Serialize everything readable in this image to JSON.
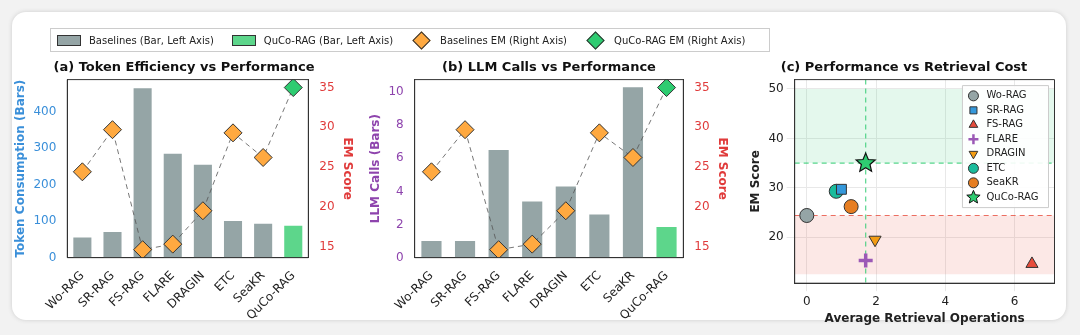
{
  "chart_data": [
    {
      "type": "bar",
      "title": "(a) Token Efficiency vs Performance",
      "ylabel": "Token Consumption (Bars)",
      "y2label": "EM Score",
      "categories": [
        "Wo-RAG",
        "SR-RAG",
        "FS-RAG",
        "FLARE",
        "DRAGIN",
        "ETC",
        "SeaKR",
        "QuCo-RAG"
      ],
      "series": [
        {
          "name": "Baselines (Bar, Left Axis)",
          "color": "#95a5a6",
          "values": [
            55,
            70,
            463,
            284,
            254,
            100,
            93,
            null
          ]
        },
        {
          "name": "QuCo-RAG (Bar, Left Axis)",
          "color": "#5dd68b",
          "values": [
            null,
            null,
            null,
            null,
            null,
            null,
            null,
            87
          ]
        },
        {
          "type": "line",
          "axis": "y2",
          "color": "#555555",
          "marker": "none",
          "line_style": "dashed",
          "values": [
            24.4,
            29.7,
            14.6,
            15.3,
            19.5,
            29.3,
            26.2,
            35.0
          ]
        },
        {
          "name": "Baselines EM (Right Axis)",
          "type": "scatter",
          "axis": "y2",
          "marker": "diamond",
          "color": "#ffa940",
          "values": [
            24.4,
            29.7,
            14.6,
            15.3,
            19.5,
            29.3,
            26.2,
            null
          ]
        },
        {
          "name": "QuCo-RAG EM (Right Axis)",
          "type": "scatter",
          "axis": "y2",
          "marker": "diamond",
          "color": "#2ecc71",
          "values": [
            null,
            null,
            null,
            null,
            null,
            null,
            null,
            35.0
          ]
        }
      ],
      "ylim": [
        0,
        487
      ],
      "yticks": [
        0,
        100,
        200,
        300,
        400
      ],
      "y2lim": [
        13.6,
        36
      ],
      "y2ticks": [
        15,
        20,
        25,
        30,
        35
      ],
      "legend": "top",
      "grid": false
    },
    {
      "type": "bar",
      "title": "(b) LLM Calls vs Performance",
      "ylabel": "LLM Calls (Bars)",
      "y2label": "EM Score",
      "categories": [
        "Wo-RAG",
        "SR-RAG",
        "FS-RAG",
        "FLARE",
        "DRAGIN",
        "ETC",
        "SeaKR",
        "QuCo-RAG"
      ],
      "series": [
        {
          "color": "#95a5a6",
          "values": [
            1.0,
            1.0,
            6.5,
            3.4,
            4.3,
            2.6,
            10.3,
            null
          ]
        },
        {
          "color": "#5dd68b",
          "values": [
            null,
            null,
            null,
            null,
            null,
            null,
            null,
            1.85
          ]
        },
        {
          "type": "line",
          "axis": "y2",
          "color": "#555555",
          "marker": "none",
          "line_style": "dashed",
          "values": [
            24.4,
            29.7,
            14.6,
            15.3,
            19.5,
            29.3,
            26.2,
            35.0
          ]
        },
        {
          "type": "scatter",
          "axis": "y2",
          "marker": "diamond",
          "color": "#ffa940",
          "values": [
            24.4,
            29.7,
            14.6,
            15.3,
            19.5,
            29.3,
            26.2,
            null
          ]
        },
        {
          "type": "scatter",
          "axis": "y2",
          "marker": "diamond",
          "color": "#2ecc71",
          "values": [
            null,
            null,
            null,
            null,
            null,
            null,
            null,
            35.0
          ]
        }
      ],
      "ylim": [
        0,
        10.76
      ],
      "yticks": [
        0,
        2,
        4,
        6,
        8,
        10
      ],
      "y2lim": [
        13.6,
        36
      ],
      "y2ticks": [
        15,
        20,
        25,
        30,
        35
      ],
      "grid": false
    },
    {
      "type": "scatter",
      "title": "(c) Performance vs Retrieval Cost",
      "xlabel": "Average Retrieval Operations",
      "ylabel": "EM Score",
      "series": [
        {
          "name": "Wo-RAG",
          "marker": "circle",
          "color": "#95a5a6",
          "x": [
            0
          ],
          "values": [
            24.4
          ]
        },
        {
          "name": "SR-RAG",
          "marker": "square",
          "color": "#3498db",
          "x": [
            1.0
          ],
          "values": [
            29.7
          ]
        },
        {
          "name": "FS-RAG",
          "marker": "triangle",
          "color": "#e74c3c",
          "x": [
            6.5
          ],
          "values": [
            14.6
          ]
        },
        {
          "name": "FLARE",
          "marker": "cross",
          "color": "#9b59b6",
          "x": [
            1.7
          ],
          "values": [
            15.3
          ]
        },
        {
          "name": "DRAGIN",
          "marker": "triangle-down",
          "color": "#f39c12",
          "x": [
            1.97
          ],
          "values": [
            19.5
          ]
        },
        {
          "name": "ETC",
          "marker": "circle",
          "color": "#1abc9c",
          "x": [
            0.85
          ],
          "values": [
            29.3
          ]
        },
        {
          "name": "SeaKR",
          "marker": "circle",
          "color": "#e67e22",
          "x": [
            1.28
          ],
          "values": [
            26.2
          ]
        },
        {
          "name": "QuCo-RAG",
          "marker": "star",
          "color": "#2ecc71",
          "x": [
            1.7
          ],
          "values": [
            35.0
          ]
        }
      ],
      "xlim": [
        -0.35,
        7.15
      ],
      "xticks": [
        0,
        2,
        4,
        6
      ],
      "ylim": [
        10.7,
        51.9
      ],
      "yticks": [
        20,
        30,
        40,
        50
      ],
      "ref_lines": [
        {
          "axis": "x",
          "value": 1.7,
          "color": "#2ecc71",
          "line_style": "dashed"
        },
        {
          "axis": "y",
          "value": 35,
          "color": "#2ecc71",
          "line_style": "dashed"
        },
        {
          "axis": "y",
          "value": 24.4,
          "color": "#e74c3c",
          "line_style": "dashed"
        }
      ],
      "bands": [
        {
          "axis": "y",
          "from": 35,
          "to": 50,
          "color": "#2ecc71"
        },
        {
          "axis": "y",
          "from": 12.5,
          "to": 24.4,
          "color": "#e74c3c"
        }
      ],
      "grid": true,
      "legend": "top right"
    }
  ]
}
